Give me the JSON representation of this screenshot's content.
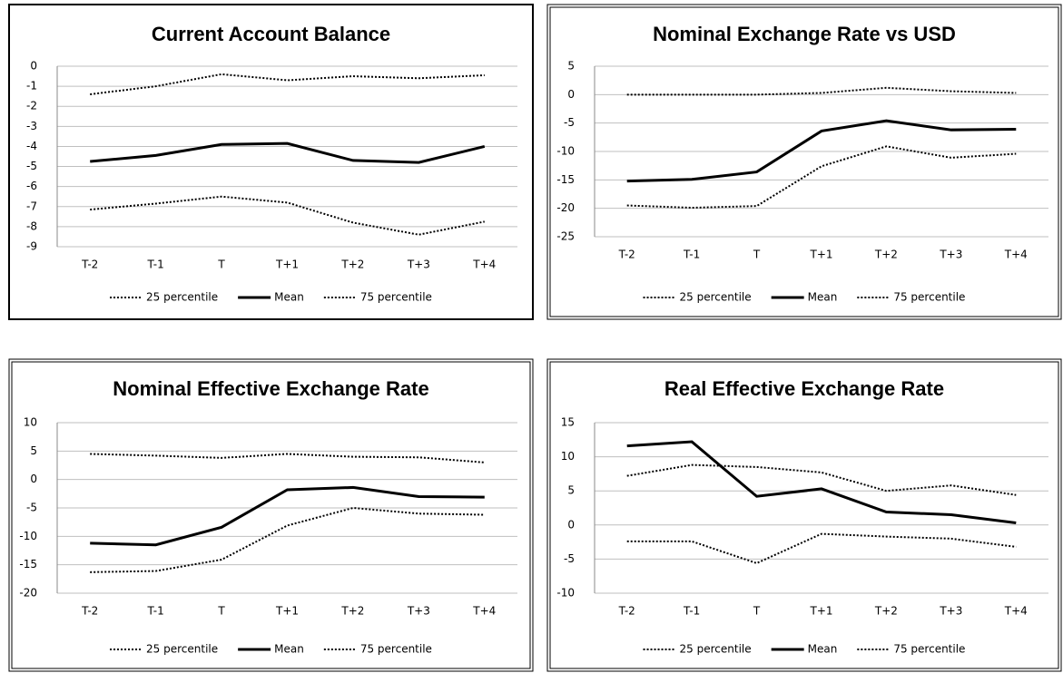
{
  "chart_data": [
    {
      "type": "line",
      "title": "Current Account Balance",
      "categories": [
        "T-2",
        "T-1",
        "T",
        "T+1",
        "T+2",
        "T+3",
        "T+4"
      ],
      "series": [
        {
          "name": "25 percentile",
          "color": "#000000",
          "style": "dotted",
          "values": [
            -7.15,
            -6.85,
            -6.5,
            -6.8,
            -7.8,
            -8.4,
            -7.75
          ]
        },
        {
          "name": "Mean",
          "color": "#000000",
          "style": "solid",
          "values": [
            -4.75,
            -4.45,
            -3.9,
            -3.85,
            -4.7,
            -4.8,
            -4.0
          ]
        },
        {
          "name": "75 percentile",
          "color": "#000000",
          "style": "dotted",
          "values": [
            -1.4,
            -1.0,
            -0.4,
            -0.7,
            -0.5,
            -0.6,
            -0.45
          ]
        }
      ],
      "ylim": [
        -9,
        0
      ],
      "yticks": [
        0,
        -1,
        -2,
        -3,
        -4,
        -5,
        -6,
        -7,
        -8,
        -9
      ],
      "grid": true,
      "legend": "bottom"
    },
    {
      "type": "line",
      "title": "Nominal Exchange Rate vs USD",
      "categories": [
        "T-2",
        "T-1",
        "T",
        "T+1",
        "T+2",
        "T+3",
        "T+4"
      ],
      "series": [
        {
          "name": "25 percentile",
          "color": "#000000",
          "style": "dotted",
          "values": [
            -19.5,
            -19.9,
            -19.6,
            -12.6,
            -9.1,
            -11.1,
            -10.4
          ]
        },
        {
          "name": "Mean",
          "color": "#000000",
          "style": "solid",
          "values": [
            -15.2,
            -14.9,
            -13.6,
            -6.4,
            -4.6,
            -6.2,
            -6.1
          ]
        },
        {
          "name": "75 percentile",
          "color": "#000000",
          "style": "dotted",
          "values": [
            0,
            0,
            0,
            0.3,
            1.2,
            0.6,
            0.3
          ]
        }
      ],
      "ylim": [
        -25,
        5
      ],
      "yticks": [
        5,
        0,
        -5,
        -10,
        -15,
        -20,
        -25
      ],
      "grid": true,
      "legend": "bottom"
    },
    {
      "type": "line",
      "title": "Nominal Effective Exchange Rate",
      "categories": [
        "T-2",
        "T-1",
        "T",
        "T+1",
        "T+2",
        "T+3",
        "T+4"
      ],
      "series": [
        {
          "name": "25 percentile",
          "color": "#000000",
          "style": "dotted",
          "values": [
            -16.3,
            -16.1,
            -14.1,
            -8.1,
            -5.0,
            -6.0,
            -6.2
          ]
        },
        {
          "name": "Mean",
          "color": "#000000",
          "style": "solid",
          "values": [
            -11.2,
            -11.5,
            -8.4,
            -1.8,
            -1.4,
            -3.0,
            -3.1
          ]
        },
        {
          "name": "75 percentile",
          "color": "#000000",
          "style": "dotted",
          "values": [
            4.5,
            4.2,
            3.8,
            4.5,
            4.0,
            3.9,
            3.0
          ]
        }
      ],
      "ylim": [
        -20,
        10
      ],
      "yticks": [
        10,
        5,
        0,
        -5,
        -10,
        -15,
        -20
      ],
      "grid": true,
      "legend": "bottom"
    },
    {
      "type": "line",
      "title": "Real Effective Exchange Rate",
      "categories": [
        "T-2",
        "T-1",
        "T",
        "T+1",
        "T+2",
        "T+3",
        "T+4"
      ],
      "series": [
        {
          "name": "25 percentile",
          "color": "#000000",
          "style": "dotted",
          "values": [
            -2.4,
            -2.4,
            -5.6,
            -1.3,
            -1.7,
            -2.0,
            -3.2
          ]
        },
        {
          "name": "Mean",
          "color": "#000000",
          "style": "solid",
          "values": [
            11.6,
            12.2,
            4.2,
            5.3,
            1.9,
            1.5,
            0.3
          ]
        },
        {
          "name": "75 percentile",
          "color": "#000000",
          "style": "dotted",
          "values": [
            7.2,
            8.8,
            8.5,
            7.7,
            5.0,
            5.8,
            4.4
          ]
        }
      ],
      "ylim": [
        -10,
        15
      ],
      "yticks": [
        15,
        10,
        5,
        0,
        -5,
        -10
      ],
      "grid": true,
      "legend": "bottom"
    }
  ]
}
